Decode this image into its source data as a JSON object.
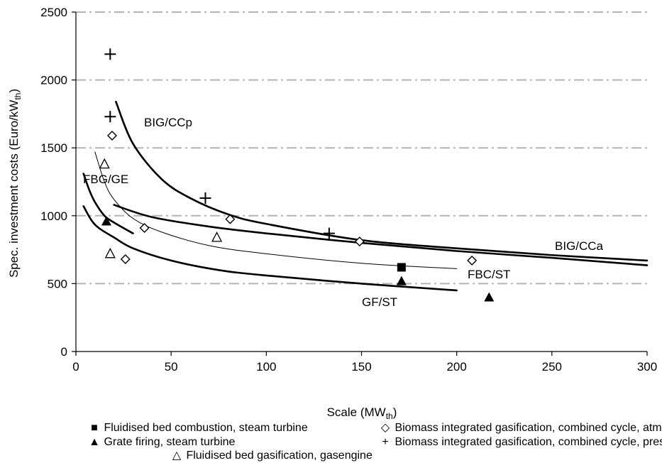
{
  "chart_data": {
    "type": "scatter",
    "xlabel": "Scale (MW",
    "xlabel_sub": "th",
    "xlabel_end": ")",
    "ylabel": "Spec. investment costs (Euro/kW",
    "ylabel_sub": "th",
    "ylabel_end": ")",
    "xlim": [
      0,
      300
    ],
    "ylim": [
      0,
      2500
    ],
    "xticks": [
      0,
      50,
      100,
      150,
      200,
      250,
      300
    ],
    "yticks": [
      0,
      500,
      1000,
      1500,
      2000,
      2500
    ],
    "grid": "horizontal dash-dot",
    "series": [
      {
        "name": "Fluidised bed combustion, steam turbine",
        "marker": "filled-square",
        "points": [
          [
            171,
            620
          ]
        ]
      },
      {
        "name": "Grate firing, steam turbine",
        "marker": "filled-triangle",
        "points": [
          [
            16,
            960
          ],
          [
            171,
            520
          ],
          [
            217,
            400
          ]
        ]
      },
      {
        "name": "Fluidised bed gasification, gasengine",
        "marker": "open-triangle",
        "points": [
          [
            15,
            1380
          ],
          [
            18,
            720
          ],
          [
            74,
            840
          ]
        ]
      },
      {
        "name": "Biomass integrated gasification, combined cycle, atmos.",
        "marker": "open-diamond",
        "points": [
          [
            19,
            1590
          ],
          [
            26,
            680
          ],
          [
            36,
            910
          ],
          [
            81,
            975
          ],
          [
            149,
            810
          ],
          [
            208,
            670
          ]
        ]
      },
      {
        "name": "Biomass integrated gasification, combined cycle, press.",
        "marker": "plus",
        "points": [
          [
            18,
            2190
          ],
          [
            18,
            1730
          ],
          [
            68,
            1130
          ],
          [
            133,
            870
          ]
        ]
      }
    ],
    "curves": [
      {
        "label": "BIG/CCp",
        "width": 2.6,
        "points": [
          [
            21,
            1840
          ],
          [
            30,
            1530
          ],
          [
            45,
            1270
          ],
          [
            60,
            1130
          ],
          [
            80,
            1010
          ],
          [
            100,
            940
          ],
          [
            150,
            820
          ],
          [
            200,
            760
          ],
          [
            250,
            710
          ],
          [
            300,
            670
          ]
        ]
      },
      {
        "label": "BIG/CCa",
        "width": 2.6,
        "points": [
          [
            20,
            1080
          ],
          [
            40,
            990
          ],
          [
            70,
            920
          ],
          [
            100,
            870
          ],
          [
            150,
            800
          ],
          [
            200,
            740
          ],
          [
            250,
            690
          ],
          [
            300,
            635
          ]
        ]
      },
      {
        "label": "FBC/ST",
        "width": 1,
        "points": [
          [
            10,
            1470
          ],
          [
            15,
            1250
          ],
          [
            20,
            1120
          ],
          [
            30,
            980
          ],
          [
            45,
            880
          ],
          [
            70,
            780
          ],
          [
            100,
            720
          ],
          [
            150,
            650
          ],
          [
            200,
            610
          ]
        ]
      },
      {
        "label": "FBG/GE",
        "width": 2.6,
        "points": [
          [
            4,
            1310
          ],
          [
            7,
            1190
          ],
          [
            10,
            1100
          ],
          [
            15,
            1000
          ],
          [
            20,
            950
          ],
          [
            30,
            870
          ]
        ]
      },
      {
        "label": "GF/ST",
        "width": 2.6,
        "points": [
          [
            4,
            1070
          ],
          [
            8,
            970
          ],
          [
            12,
            910
          ],
          [
            20,
            840
          ],
          [
            30,
            760
          ],
          [
            50,
            670
          ],
          [
            75,
            600
          ],
          [
            100,
            560
          ],
          [
            150,
            500
          ],
          [
            200,
            450
          ]
        ]
      }
    ],
    "curve_labels": [
      "BIG/CCp",
      "BIG/CCa",
      "FBC/ST",
      "FBG/GE",
      "GF/ST"
    ],
    "legend": [
      {
        "symbol": "■",
        "label": "Fluidised bed combustion, steam turbine"
      },
      {
        "symbol": "◇",
        "label": "Biomass integrated gasification, combined cycle, atmos."
      },
      {
        "symbol": "▲",
        "label": "Grate firing, steam turbine"
      },
      {
        "symbol": "+",
        "label": "Biomass integrated gasification, combined cycle, press."
      },
      {
        "symbol": "△",
        "label": "Fluidised bed gasification, gasengine"
      }
    ]
  }
}
